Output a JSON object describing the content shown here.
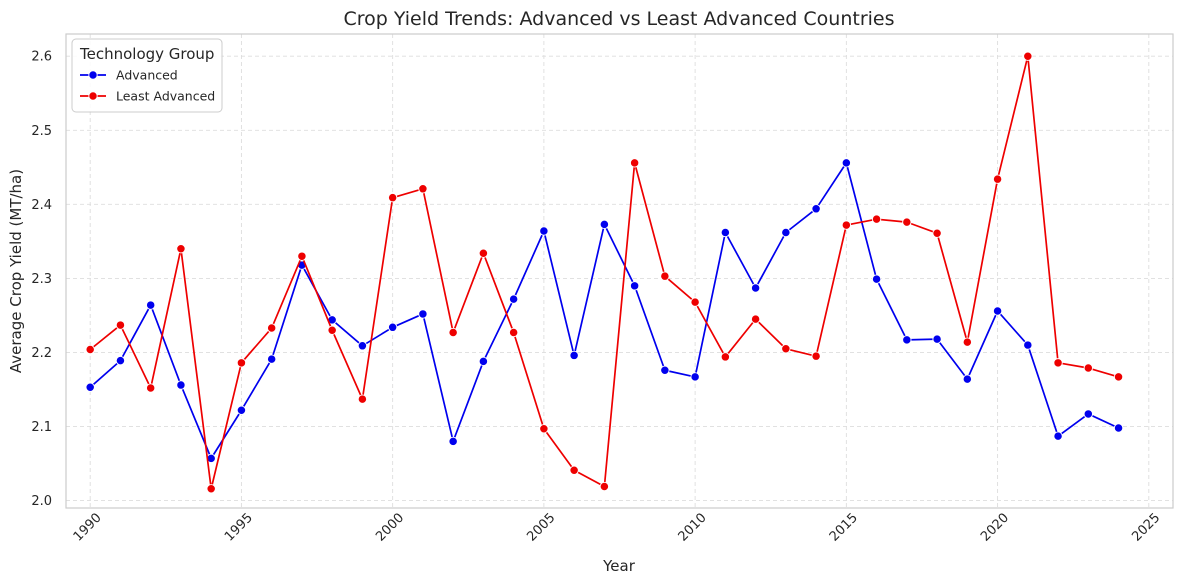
{
  "chart_data": {
    "type": "line",
    "title": "Crop Yield Trends: Advanced vs Least Advanced Countries",
    "xlabel": "Year",
    "ylabel": "Average Crop Yield (MT/ha)",
    "xlim": [
      1989.2,
      2025.8
    ],
    "ylim": [
      1.99,
      2.63
    ],
    "x_ticks": [
      1990,
      1995,
      2000,
      2005,
      2010,
      2015,
      2020,
      2025
    ],
    "y_ticks": [
      2.0,
      2.1,
      2.2,
      2.3,
      2.4,
      2.5,
      2.6
    ],
    "y_tick_labels": [
      "2.0",
      "2.1",
      "2.2",
      "2.3",
      "2.4",
      "2.5",
      "2.6"
    ],
    "grid": true,
    "legend": {
      "title": "Technology Group",
      "placement": "top-left"
    },
    "x": [
      1990,
      1991,
      1992,
      1993,
      1994,
      1995,
      1996,
      1997,
      1998,
      1999,
      2000,
      2001,
      2002,
      2003,
      2004,
      2005,
      2006,
      2007,
      2008,
      2009,
      2010,
      2011,
      2012,
      2013,
      2014,
      2015,
      2016,
      2017,
      2018,
      2019,
      2020,
      2021,
      2022,
      2023,
      2024
    ],
    "series": [
      {
        "name": "Advanced",
        "color": "#0000ee",
        "values": [
          2.153,
          2.189,
          2.264,
          2.156,
          2.057,
          2.122,
          2.191,
          2.318,
          2.244,
          2.209,
          2.234,
          2.252,
          2.08,
          2.188,
          2.272,
          2.364,
          2.196,
          2.373,
          2.29,
          2.176,
          2.167,
          2.362,
          2.287,
          2.362,
          2.394,
          2.456,
          2.299,
          2.217,
          2.218,
          2.164,
          2.256,
          2.21,
          2.087,
          2.117,
          2.098
        ]
      },
      {
        "name": "Least Advanced",
        "color": "#ee0000",
        "values": [
          2.204,
          2.237,
          2.152,
          2.34,
          2.016,
          2.186,
          2.233,
          2.33,
          2.23,
          2.137,
          2.409,
          2.421,
          2.227,
          2.334,
          2.227,
          2.097,
          2.041,
          2.019,
          2.456,
          2.303,
          2.268,
          2.194,
          2.245,
          2.205,
          2.195,
          2.372,
          2.38,
          2.376,
          2.361,
          2.214,
          2.434,
          2.6,
          2.186,
          2.179,
          2.167
        ]
      }
    ]
  }
}
